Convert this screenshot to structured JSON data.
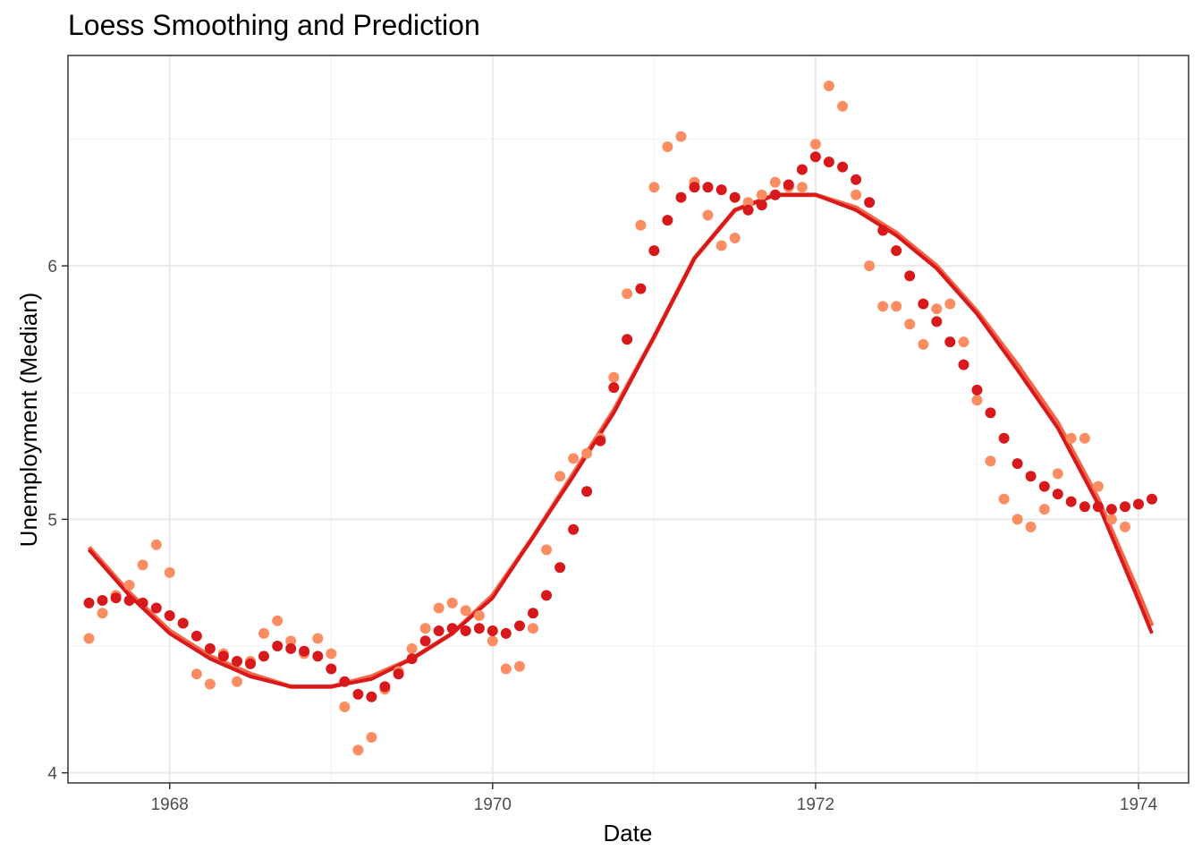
{
  "chart_data": {
    "type": "scatter",
    "title": "Loess Smoothing and Prediction",
    "xlabel": "Date",
    "ylabel": "Unemployment (Median)",
    "xlim": [
      1967.37,
      1974.31
    ],
    "ylim": [
      3.96,
      6.83
    ],
    "x_ticks": [
      1968,
      1970,
      1972,
      1974
    ],
    "y_ticks": [
      4,
      5,
      6
    ],
    "x_tick_labels": [
      "1968",
      "1970",
      "1972",
      "1974"
    ],
    "y_tick_labels": [
      "4",
      "5",
      "6"
    ],
    "grid": true,
    "colors": {
      "observed": "#fc8d62",
      "smoothed": "#d7191c",
      "prediction_line_under": "#f4664a",
      "prediction_line": "#d7191c"
    },
    "x": [
      1967.5,
      1967.583,
      1967.667,
      1967.75,
      1967.833,
      1967.917,
      1968.0,
      1968.083,
      1968.167,
      1968.25,
      1968.333,
      1968.417,
      1968.5,
      1968.583,
      1968.667,
      1968.75,
      1968.833,
      1968.917,
      1969.0,
      1969.083,
      1969.167,
      1969.25,
      1969.333,
      1969.417,
      1969.5,
      1969.583,
      1969.667,
      1969.75,
      1969.833,
      1969.917,
      1970.0,
      1970.083,
      1970.167,
      1970.25,
      1970.333,
      1970.417,
      1970.5,
      1970.583,
      1970.667,
      1970.75,
      1970.833,
      1970.917,
      1971.0,
      1971.083,
      1971.167,
      1971.25,
      1971.333,
      1971.417,
      1971.5,
      1971.583,
      1971.667,
      1971.75,
      1971.833,
      1971.917,
      1972.0,
      1972.083,
      1972.167,
      1972.25,
      1972.333,
      1972.417,
      1972.5,
      1972.583,
      1972.667,
      1972.75,
      1972.833,
      1972.917,
      1973.0,
      1973.083,
      1973.167,
      1973.25,
      1973.333,
      1973.417,
      1973.5,
      1973.583,
      1973.667,
      1973.75,
      1973.833,
      1973.917,
      1974.0,
      1974.083
    ],
    "series": [
      {
        "values": [
          4.53,
          4.63,
          4.7,
          4.74,
          4.82,
          4.9,
          4.79,
          4.59,
          4.39,
          4.35,
          4.47,
          4.36,
          4.44,
          4.55,
          4.6,
          4.52,
          4.47,
          4.53,
          4.47,
          4.26,
          4.09,
          4.14,
          4.33,
          4.4,
          4.49,
          4.57,
          4.65,
          4.67,
          4.64,
          4.62,
          4.52,
          4.41,
          4.42,
          4.57,
          4.88,
          5.17,
          5.24,
          5.26,
          5.32,
          5.56,
          5.89,
          6.16,
          6.31,
          6.47,
          6.51,
          6.33,
          6.2,
          6.08,
          6.11,
          6.25,
          6.28,
          6.33,
          6.31,
          6.31,
          6.48,
          6.71,
          6.63,
          6.28,
          6.0,
          5.84,
          5.84,
          5.77,
          5.69,
          5.83,
          5.85,
          5.7,
          5.47,
          5.23,
          5.08,
          5.0,
          4.97,
          5.04,
          5.18,
          5.32,
          5.32,
          5.13,
          5.0,
          4.97,
          5.06
        ]
      },
      {
        "values": [
          4.67,
          4.68,
          4.69,
          4.68,
          4.67,
          4.65,
          4.62,
          4.59,
          4.54,
          4.49,
          4.46,
          4.44,
          4.43,
          4.46,
          4.5,
          4.49,
          4.48,
          4.46,
          4.41,
          4.36,
          4.31,
          4.3,
          4.34,
          4.39,
          4.45,
          4.52,
          4.56,
          4.57,
          4.56,
          4.57,
          4.56,
          4.55,
          4.58,
          4.63,
          4.7,
          4.81,
          4.96,
          5.11,
          5.31,
          5.52,
          5.71,
          5.91,
          6.06,
          6.18,
          6.27,
          6.31,
          6.31,
          6.3,
          6.27,
          6.22,
          6.24,
          6.28,
          6.32,
          6.38,
          6.43,
          6.41,
          6.39,
          6.34,
          6.25,
          6.14,
          6.06,
          5.96,
          5.85,
          5.78,
          5.7,
          5.61,
          5.51,
          5.42,
          5.32,
          5.22,
          5.17,
          5.13,
          5.1,
          5.07,
          5.05,
          5.05,
          5.04,
          5.05,
          5.06,
          5.08
        ]
      }
    ],
    "lines": [
      {
        "x": [
          1967.5,
          1967.75,
          1968.0,
          1968.25,
          1968.5,
          1968.75,
          1969.0,
          1969.25,
          1969.5,
          1969.75,
          1970.0,
          1970.25,
          1970.5,
          1970.75,
          1971.0,
          1971.25,
          1971.5,
          1971.75,
          1972.0,
          1972.25,
          1972.5,
          1972.75,
          1973.0,
          1973.25,
          1973.5,
          1973.75,
          1974.0,
          1974.083
        ],
        "y": [
          4.89,
          4.71,
          4.56,
          4.46,
          4.39,
          4.34,
          4.34,
          4.38,
          4.45,
          4.55,
          4.7,
          4.93,
          5.18,
          5.43,
          5.72,
          6.03,
          6.22,
          6.28,
          6.28,
          6.23,
          6.13,
          6.0,
          5.82,
          5.61,
          5.38,
          5.08,
          4.71,
          4.58
        ]
      },
      {
        "x": [
          1967.5,
          1967.75,
          1968.0,
          1968.25,
          1968.5,
          1968.75,
          1969.0,
          1969.25,
          1969.5,
          1969.75,
          1970.0,
          1970.25,
          1970.5,
          1970.75,
          1971.0,
          1971.25,
          1971.5,
          1971.75,
          1972.0,
          1972.25,
          1972.5,
          1972.75,
          1973.0,
          1973.25,
          1973.5,
          1973.75,
          1974.0,
          1974.083
        ],
        "y": [
          4.88,
          4.7,
          4.55,
          4.45,
          4.38,
          4.34,
          4.34,
          4.37,
          4.45,
          4.55,
          4.69,
          4.93,
          5.17,
          5.42,
          5.72,
          6.03,
          6.22,
          6.28,
          6.28,
          6.22,
          6.12,
          5.99,
          5.81,
          5.59,
          5.36,
          5.06,
          4.68,
          4.55
        ]
      }
    ]
  }
}
